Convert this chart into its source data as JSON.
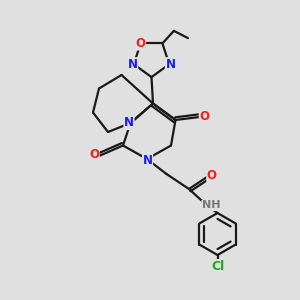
{
  "background_color": "#e0e0e0",
  "bond_color": "#1a1a1a",
  "bond_width": 1.6,
  "atom_colors": {
    "N": "#1a1aff",
    "O": "#ff1a1a",
    "Cl": "#1aaa1a",
    "C": "#1a1a1a",
    "H": "#777777"
  },
  "font_size": 8.5,
  "figsize": [
    3.0,
    3.0
  ],
  "dpi": 100
}
